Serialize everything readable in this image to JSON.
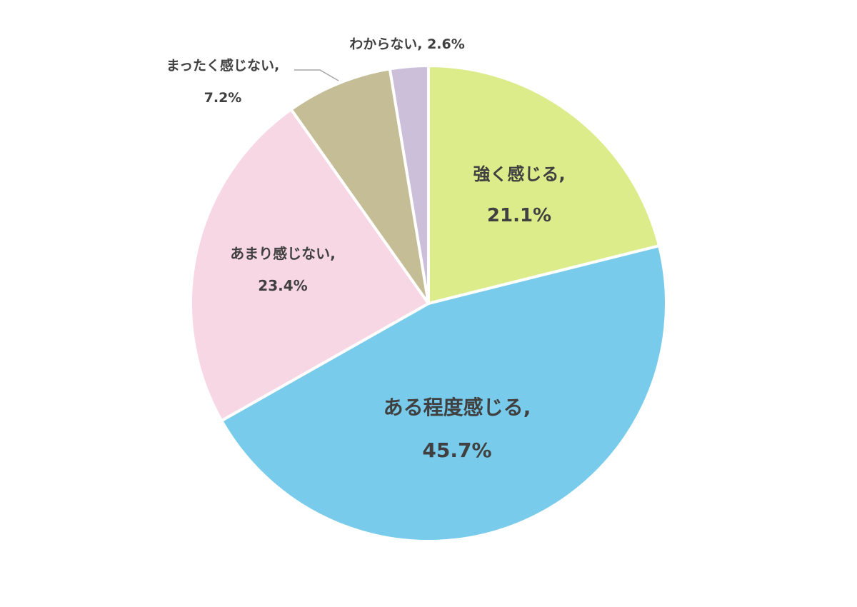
{
  "chart_data": {
    "type": "pie",
    "start_angle": "top",
    "direction": "clockwise",
    "slices": [
      {
        "label": "強く感じる",
        "value": 21.1,
        "value_text": "21.1%",
        "color": "#dcec8a"
      },
      {
        "label": "ある程度感じる",
        "value": 45.7,
        "value_text": "45.7%",
        "color": "#78cbea"
      },
      {
        "label": "あまり感じない",
        "value": 23.4,
        "value_text": "23.4%",
        "color": "#f7d7e4"
      },
      {
        "label": "まったく感じない",
        "value": 7.2,
        "value_text": "7.2%",
        "color": "#c4bd96"
      },
      {
        "label": "わからない",
        "value": 2.6,
        "value_text": "2.6%",
        "color": "#cbbfd9"
      }
    ],
    "label_color": "#404040",
    "separator_color": "#ffffff"
  }
}
